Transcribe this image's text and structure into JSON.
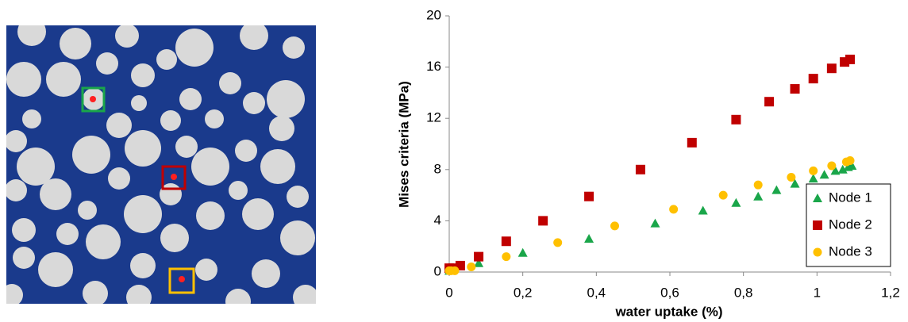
{
  "chart_data": {
    "type": "scatter",
    "xlabel": "water uptake  (%)",
    "ylabel": "Mises criteria (MPa)",
    "xlim": [
      0,
      1.2
    ],
    "ylim": [
      0,
      20
    ],
    "xticks": [
      0,
      {
        "value": 0.2,
        "label": "0,2"
      },
      {
        "value": 0.4,
        "label": "0,4"
      },
      {
        "value": 0.6,
        "label": "0,6"
      },
      {
        "value": 0.8,
        "label": "0,8"
      },
      1,
      {
        "value": 1.2,
        "label": "1,2"
      }
    ],
    "yticks": [
      0,
      4,
      8,
      12,
      16,
      20
    ],
    "legend": "lower right",
    "series": [
      {
        "name": "Node 1",
        "color": "#1aa64a",
        "marker": "triangle",
        "x": [
          0,
          0.01,
          0.08,
          0.2,
          0.38,
          0.56,
          0.69,
          0.78,
          0.84,
          0.89,
          0.94,
          0.99,
          1.02,
          1.05,
          1.07,
          1.085,
          1.095
        ],
        "values": [
          0.1,
          0.2,
          0.7,
          1.5,
          2.6,
          3.8,
          4.8,
          5.4,
          5.9,
          6.4,
          6.9,
          7.3,
          7.6,
          7.9,
          8.0,
          8.2,
          8.3
        ]
      },
      {
        "name": "Node 2",
        "color": "#c00000",
        "marker": "square",
        "x": [
          0,
          0.01,
          0.03,
          0.08,
          0.155,
          0.255,
          0.38,
          0.52,
          0.66,
          0.78,
          0.87,
          0.94,
          0.99,
          1.04,
          1.075,
          1.09
        ],
        "values": [
          0.3,
          0.3,
          0.5,
          1.2,
          2.4,
          4.0,
          5.9,
          8.0,
          10.1,
          11.9,
          13.3,
          14.3,
          15.1,
          15.9,
          16.4,
          16.6
        ]
      },
      {
        "name": "Node 3",
        "color": "#ffc000",
        "marker": "circle",
        "x": [
          0,
          0.005,
          0.015,
          0.06,
          0.155,
          0.295,
          0.45,
          0.61,
          0.745,
          0.84,
          0.93,
          0.99,
          1.04,
          1.08,
          1.09
        ],
        "values": [
          0.1,
          0.1,
          0.1,
          0.4,
          1.2,
          2.3,
          3.6,
          4.9,
          6.0,
          6.8,
          7.4,
          7.9,
          8.3,
          8.6,
          8.7
        ]
      }
    ]
  }
}
